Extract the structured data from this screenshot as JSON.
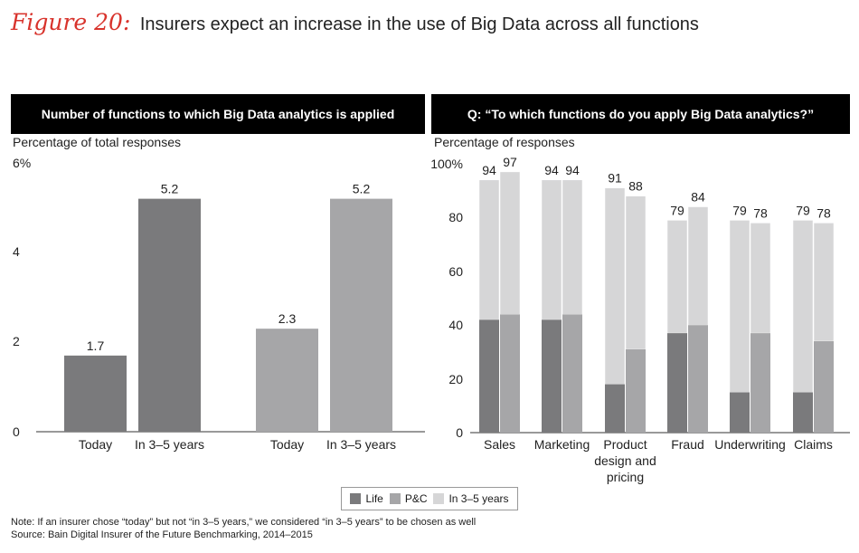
{
  "figure": {
    "label": "Figure 20:",
    "title": "Insurers expect an increase in the use of Big Data across all functions"
  },
  "colors": {
    "life": "#7a7a7c",
    "pc": "#a6a6a8",
    "future": "#d6d6d7",
    "left_today_1": "#7a7a7c",
    "left_future_1": "#7a7a7c",
    "left_today_2": "#a6a6a8",
    "left_future_2": "#a6a6a8"
  },
  "left_panel": {
    "header": "Number of functions to which Big Data analytics is applied",
    "subtitle": "Percentage of total responses"
  },
  "right_panel": {
    "header": "Q: “To which functions do you apply Big Data analytics?”",
    "subtitle": "Percentage of responses"
  },
  "chart_data": [
    {
      "type": "bar",
      "ylim": [
        0,
        6
      ],
      "y_ticks": [
        "0",
        "2",
        "4",
        "6%"
      ],
      "categories": [
        "Today",
        "In 3–5 years",
        "Today",
        "In 3–5 years"
      ],
      "values": [
        1.7,
        5.2,
        2.3,
        5.2
      ],
      "value_labels": [
        "1.7",
        "5.2",
        "2.3",
        "5.2"
      ]
    },
    {
      "type": "bar",
      "ylim": [
        0,
        100
      ],
      "y_ticks": [
        "0",
        "20",
        "40",
        "60",
        "80",
        "100%"
      ],
      "categories": [
        "Sales",
        "Marketing",
        "Product design and pricing",
        "Fraud",
        "Underwriting",
        "Claims"
      ],
      "category_lines": [
        [
          "Sales"
        ],
        [
          "Marketing"
        ],
        [
          "Product",
          "design and",
          "pricing"
        ],
        [
          "Fraud"
        ],
        [
          "Underwriting"
        ],
        [
          "Claims"
        ]
      ],
      "series": [
        {
          "name": "Life",
          "today": [
            42,
            42,
            18,
            37,
            15,
            15
          ],
          "total": [
            94,
            94,
            91,
            79,
            79,
            79
          ]
        },
        {
          "name": "P&C",
          "today": [
            44,
            44,
            31,
            40,
            37,
            34
          ],
          "total": [
            97,
            94,
            88,
            84,
            78,
            78
          ]
        }
      ],
      "legend": [
        "Life",
        "P&C",
        "In 3–5 years"
      ],
      "legend_position": "bottom"
    }
  ],
  "footnotes": {
    "note": "Note: If an insurer chose “today” but not “in 3–5 years,” we considered “in 3–5 years” to be chosen as well",
    "source": "Source: Bain Digital Insurer of the Future Benchmarking, 2014–2015"
  }
}
